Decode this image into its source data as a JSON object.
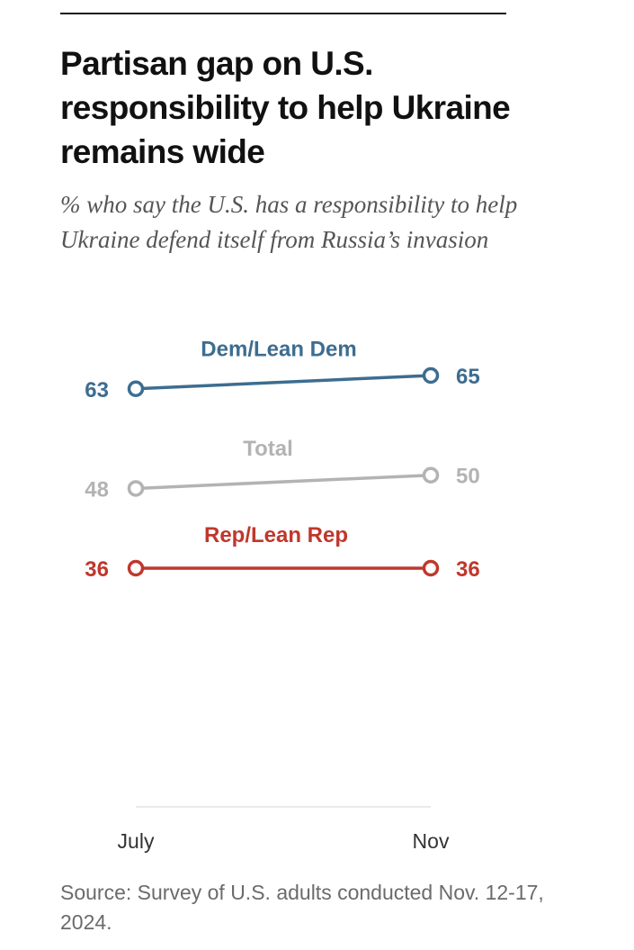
{
  "header": {
    "title": "Partisan gap on U.S. responsibility to help Ukraine remains wide",
    "subtitle": "% who say the U.S. has a responsibility to help Ukraine defend itself from Russia’s invasion"
  },
  "footer": {
    "source": "Source: Survey of U.S. adults conducted Nov. 12-17, 2024."
  },
  "chart_data": {
    "type": "line",
    "title": "Partisan gap on U.S. responsibility to help Ukraine remains wide",
    "subtitle": "% who say the U.S. has a responsibility to help Ukraine defend itself from Russia’s invasion",
    "xlabel": "",
    "ylabel": "",
    "x": [
      "July",
      "Nov"
    ],
    "ylim": [
      0,
      100
    ],
    "grid": false,
    "legend": "direct labels above lines",
    "series": [
      {
        "name": "Dem/Lean Dem",
        "values": [
          63,
          65
        ],
        "color": "#3d6d90"
      },
      {
        "name": "Total",
        "values": [
          48,
          50
        ],
        "color": "#b3b3b3"
      },
      {
        "name": "Rep/Lean Rep",
        "values": [
          36,
          36
        ],
        "color": "#c0372c"
      }
    ]
  }
}
